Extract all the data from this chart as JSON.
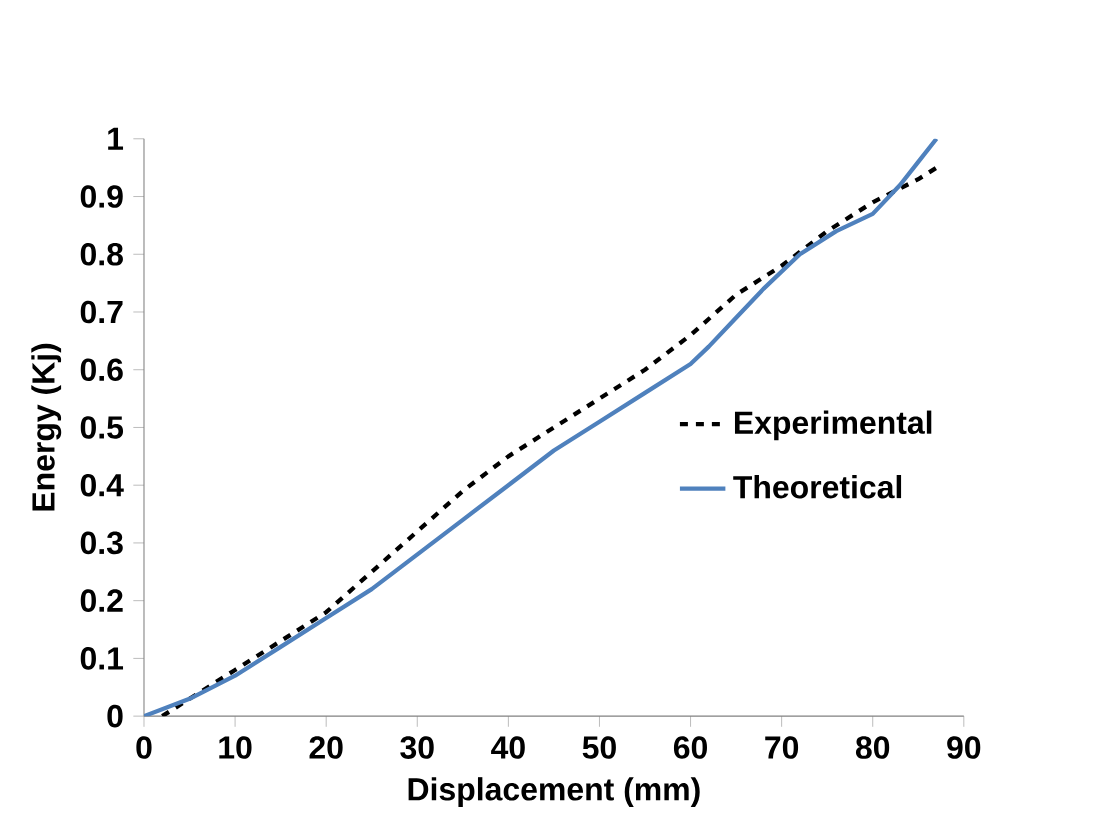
{
  "chart_data": {
    "type": "line",
    "xlabel": "Displacement (mm)",
    "ylabel": "Energy (Kj)",
    "xlim": [
      0,
      90
    ],
    "xticks": [
      0,
      10,
      20,
      30,
      40,
      50,
      60,
      70,
      80,
      90
    ],
    "ylim": [
      0,
      1
    ],
    "yticks": [
      0,
      {
        "value": 0.1,
        "label": "0.1"
      },
      {
        "value": 0.2,
        "label": "0.2"
      },
      {
        "value": 0.3,
        "label": "0.3"
      },
      {
        "value": 0.4,
        "label": "0.4"
      },
      {
        "value": 0.5,
        "label": "0.5"
      },
      {
        "value": 0.6,
        "label": "0.6"
      },
      {
        "value": 0.7,
        "label": "0.7"
      },
      {
        "value": 0.8,
        "label": "0.8"
      },
      {
        "value": 0.9,
        "label": "0.9"
      },
      1
    ],
    "grid": false,
    "legend": "right",
    "series": [
      {
        "name": "Experimental",
        "color": "#000000",
        "line_style": "dashed",
        "x": [
          2,
          5,
          10,
          15,
          20,
          25,
          30,
          35,
          40,
          45,
          50,
          55,
          60,
          65,
          70,
          75,
          80,
          85,
          87
        ],
        "values": [
          0,
          0.03,
          0.08,
          0.13,
          0.18,
          0.25,
          0.32,
          0.39,
          0.45,
          0.5,
          0.55,
          0.6,
          0.66,
          0.73,
          0.78,
          0.84,
          0.89,
          0.93,
          0.95
        ]
      },
      {
        "name": "Theoretical",
        "color": "#4f81bd",
        "line_style": "solid",
        "x": [
          0,
          5,
          10,
          15,
          20,
          25,
          30,
          35,
          40,
          45,
          50,
          55,
          60,
          62,
          65,
          68,
          72,
          76,
          80,
          83,
          85,
          87
        ],
        "values": [
          0,
          0.03,
          0.07,
          0.12,
          0.17,
          0.22,
          0.28,
          0.34,
          0.4,
          0.46,
          0.51,
          0.56,
          0.61,
          0.64,
          0.69,
          0.74,
          0.8,
          0.84,
          0.87,
          0.92,
          0.96,
          1.0
        ]
      }
    ]
  }
}
